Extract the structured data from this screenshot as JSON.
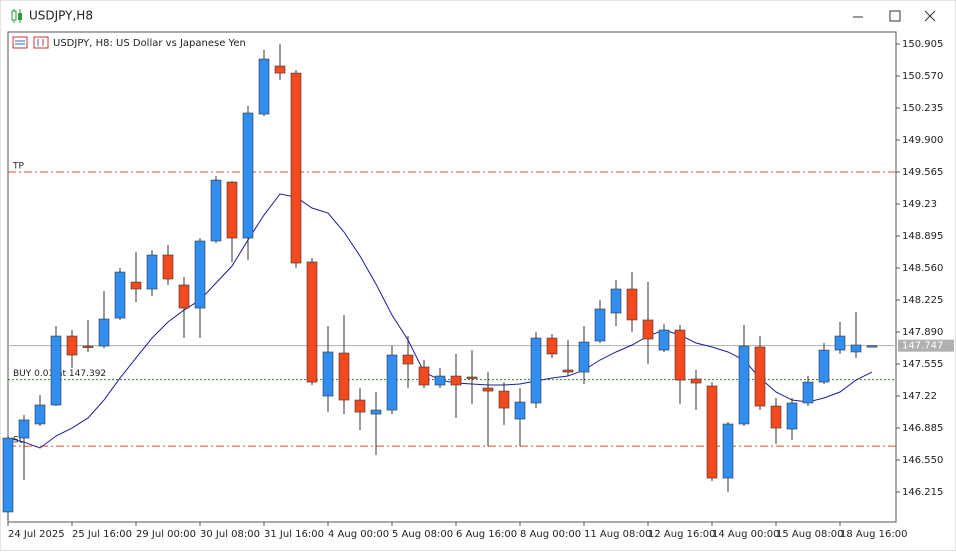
{
  "window": {
    "title": "USDJPY,H8"
  },
  "chart_data": {
    "type": "candlestick",
    "title": "USDJPY, H8:  US Dollar vs Japanese Yen",
    "categories": [
      "24 Jul 2025",
      null,
      null,
      null,
      "25 Jul 16:00",
      null,
      null,
      null,
      "29 Jul 00:00",
      null,
      null,
      null,
      "30 Jul 08:00",
      null,
      null,
      null,
      "31 Jul 16:00",
      null,
      null,
      null,
      "4 Aug 00:00",
      null,
      null,
      null,
      "5 Aug 08:00",
      null,
      null,
      null,
      "6 Aug 16:00",
      null,
      null,
      null,
      "8 Aug 00:00",
      null,
      null,
      null,
      "11 Aug 08:00",
      null,
      null,
      null,
      "12 Aug 16:00",
      null,
      null,
      null,
      "14 Aug 00:00",
      null,
      null,
      null,
      "15 Aug 08:00",
      null,
      null,
      null,
      "18 Aug 16:00",
      null,
      null
    ],
    "open": [
      146.006,
      146.78,
      146.927,
      147.126,
      147.848,
      147.743,
      147.743,
      148.036,
      148.413,
      148.34,
      148.696,
      148.382,
      148.141,
      148.843,
      149.46,
      148.874,
      150.172,
      150.675,
      150.601,
      148.623,
      147.22,
      147.67,
      147.178,
      147.031,
      147.073,
      147.649,
      147.524,
      147.335,
      147.429,
      147.419,
      147.304,
      147.272,
      146.979,
      147.147,
      147.827,
      147.492,
      147.471,
      147.796,
      148.089,
      148.34,
      148.016,
      147.701,
      147.911,
      147.398,
      147.325,
      146.361,
      146.927,
      147.733,
      147.115,
      146.874,
      147.147,
      147.366,
      147.701,
      147.681,
      147.743
    ],
    "high": [
      146.801,
      147.021,
      147.23,
      147.953,
      147.911,
      148.016,
      148.319,
      148.56,
      148.727,
      148.748,
      148.801,
      148.466,
      148.874,
      149.523,
      149.471,
      150.256,
      150.842,
      150.905,
      150.633,
      148.665,
      147.953,
      148.068,
      147.304,
      147.262,
      147.743,
      147.848,
      147.597,
      147.513,
      147.66,
      147.701,
      147.471,
      147.366,
      147.304,
      147.89,
      147.869,
      147.806,
      147.953,
      148.225,
      148.434,
      148.518,
      148.413,
      147.974,
      147.963,
      147.492,
      147.366,
      146.948,
      147.963,
      147.848,
      147.199,
      147.199,
      147.429,
      147.775,
      147.995,
      148.099,
      147.747
    ],
    "low": [
      145.922,
      146.341,
      146.906,
      147.115,
      147.513,
      147.681,
      147.722,
      148.016,
      148.204,
      148.267,
      148.382,
      147.827,
      147.827,
      148.822,
      148.623,
      148.644,
      150.151,
      150.528,
      148.56,
      147.335,
      147.052,
      147.031,
      146.864,
      146.602,
      147.031,
      147.304,
      147.304,
      147.304,
      146.99,
      147.136,
      146.696,
      146.916,
      146.696,
      147.094,
      147.618,
      147.429,
      147.346,
      147.775,
      147.953,
      147.89,
      147.555,
      147.681,
      147.136,
      147.073,
      146.33,
      146.215,
      146.906,
      147.073,
      146.717,
      146.759,
      147.115,
      147.346,
      147.66,
      147.618,
      147.743
    ],
    "close": [
      146.78,
      146.969,
      147.126,
      147.848,
      147.649,
      147.733,
      148.026,
      148.518,
      148.34,
      148.696,
      148.445,
      148.141,
      148.843,
      149.481,
      148.874,
      150.183,
      150.748,
      150.601,
      148.612,
      147.366,
      147.681,
      147.178,
      147.052,
      147.073,
      147.649,
      147.555,
      147.335,
      147.429,
      147.335,
      147.408,
      147.272,
      147.094,
      147.157,
      147.827,
      147.66,
      147.471,
      147.785,
      148.131,
      148.34,
      148.016,
      147.817,
      147.911,
      147.387,
      147.356,
      146.361,
      146.927,
      147.743,
      147.115,
      146.885,
      147.147,
      147.366,
      147.701,
      147.848,
      147.754,
      147.747
    ],
    "up_color": "#2f8ef0",
    "down_color": "#f24a1c",
    "moving_average": {
      "color": "#1c1c9c",
      "values": [
        146.78,
        146.738,
        146.676,
        146.801,
        146.885,
        146.99,
        147.178,
        147.408,
        147.618,
        147.827,
        147.995,
        148.12,
        148.225,
        148.403,
        148.581,
        148.853,
        149.115,
        149.335,
        149.303,
        149.188,
        149.136,
        148.937,
        148.686,
        148.392,
        148.068,
        147.806,
        147.471,
        147.387,
        147.356,
        147.346,
        147.335,
        147.335,
        147.346,
        147.377,
        147.408,
        147.429,
        147.492,
        147.597,
        147.681,
        147.754,
        147.848,
        147.911,
        147.859,
        147.775,
        147.733,
        147.681,
        147.597,
        147.408,
        147.262,
        147.178,
        147.157,
        147.199,
        147.262,
        147.387,
        147.471
      ]
    },
    "levels": [
      {
        "label": "TP",
        "value": 149.565,
        "color": "#d9532b"
      },
      {
        "label": "BUY 0.01 at 147.392",
        "value": 147.392,
        "color": "#2e7d32"
      },
      {
        "label": "SL",
        "value": 146.696,
        "color": "#d9532b"
      }
    ],
    "current_price": {
      "value": 147.747,
      "color": "#b0b0b0"
    },
    "ylim": [
      145.901,
      151.031
    ],
    "yticks": [
      150.905,
      {
        "value": 150.57,
        "label": "150.570"
      },
      150.235,
      {
        "value": 149.9,
        "label": "149.900"
      },
      149.565,
      149.23,
      148.895,
      {
        "value": 148.56,
        "label": "148.560"
      },
      148.225,
      {
        "value": 147.89,
        "label": "147.890"
      },
      147.555,
      147.22,
      146.885,
      {
        "value": 146.55,
        "label": "146.550"
      },
      146.215
    ]
  }
}
